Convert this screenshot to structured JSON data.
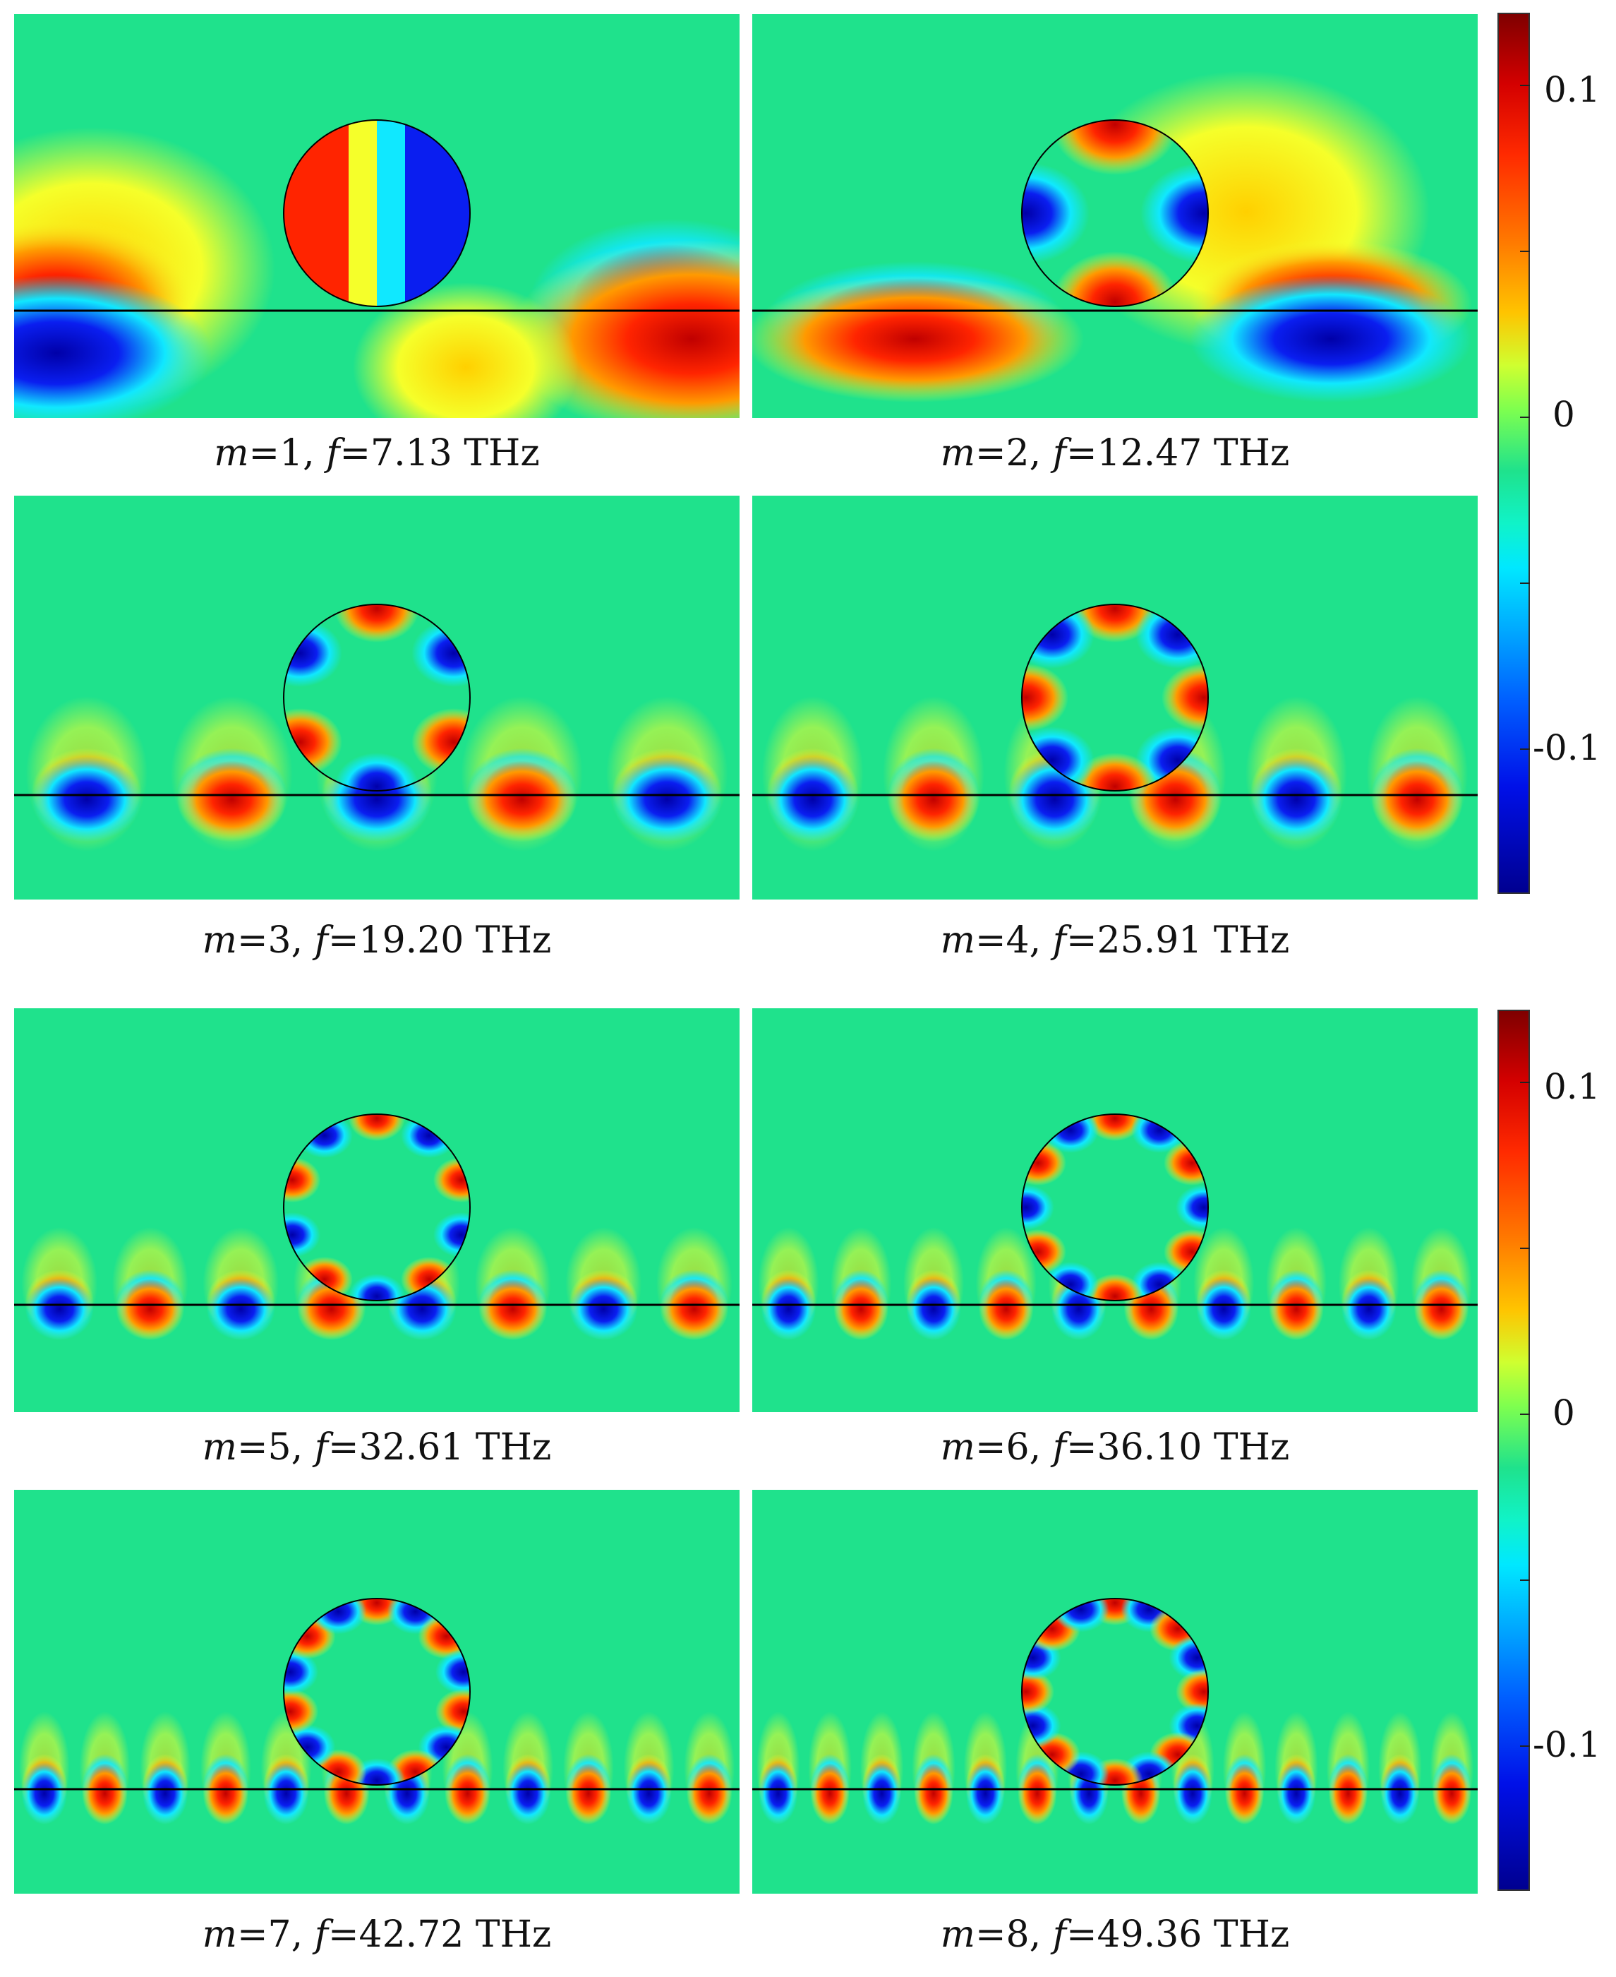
{
  "colorbar": {
    "ticks": [
      "0.1",
      "0",
      "-0.1"
    ],
    "colors": [
      "#7f0000",
      "#d40000",
      "#ff2a00",
      "#ff7a00",
      "#ffc400",
      "#cfff30",
      "#7eff4f",
      "#1fe28c",
      "#10f3c8",
      "#00e8ff",
      "#00aaff",
      "#0060ff",
      "#0010e8",
      "#000090"
    ]
  },
  "panels": [
    {
      "m_label": "m",
      "m_val": "=1, ",
      "f_label": "f",
      "f_val": "=7.13 THz",
      "mode": 1
    },
    {
      "m_label": "m",
      "m_val": "=2, ",
      "f_label": "f",
      "f_val": "=12.47 THz",
      "mode": 2
    },
    {
      "m_label": "m",
      "m_val": "=3, ",
      "f_label": "f",
      "f_val": "=19.20 THz",
      "mode": 3
    },
    {
      "m_label": "m",
      "m_val": "=4, ",
      "f_label": "f",
      "f_val": "=25.91 THz",
      "mode": 4
    },
    {
      "m_label": "m",
      "m_val": "=5, ",
      "f_label": "f",
      "f_val": "=32.61 THz",
      "mode": 5
    },
    {
      "m_label": "m",
      "m_val": "=6, ",
      "f_label": "f",
      "f_val": "=36.10 THz",
      "mode": 6
    },
    {
      "m_label": "m",
      "m_val": "=7, ",
      "f_label": "f",
      "f_val": "=42.72 THz",
      "mode": 7
    },
    {
      "m_label": "m",
      "m_val": "=8, ",
      "f_label": "f",
      "f_val": "=49.36 THz",
      "mode": 8
    }
  ]
}
